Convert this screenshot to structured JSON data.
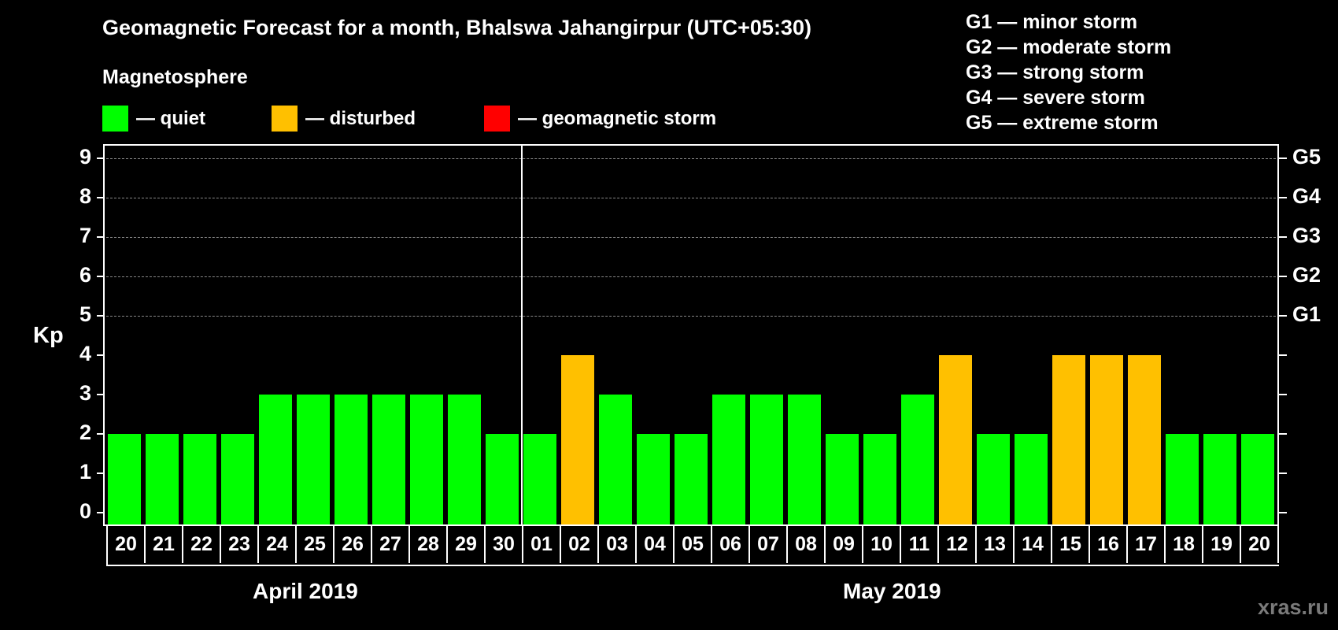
{
  "title": "Geomagnetic Forecast for a month, Bhalswa Jahangirpur (UTC+05:30)",
  "subtitle": "Magnetosphere",
  "legend": [
    {
      "label": "— quiet",
      "color": "#00ff00"
    },
    {
      "label": "— disturbed",
      "color": "#ffc000"
    },
    {
      "label": "— geomagnetic storm",
      "color": "#ff0000"
    }
  ],
  "g_scale_legend": [
    "G1 — minor storm",
    "G2 — moderate storm",
    "G3 — strong storm",
    "G4 — severe storm",
    "G5 — extreme storm"
  ],
  "y_axis_label": "Kp",
  "y_ticks": [
    "0",
    "1",
    "2",
    "3",
    "4",
    "5",
    "6",
    "7",
    "8",
    "9"
  ],
  "right_ticks": {
    "5": "G1",
    "6": "G2",
    "7": "G3",
    "8": "G4",
    "9": "G5"
  },
  "months": [
    {
      "label": "April 2019"
    },
    {
      "label": "May 2019"
    }
  ],
  "watermark": "xras.ru",
  "colors": {
    "quiet": "#00ff00",
    "disturbed": "#ffc000",
    "storm": "#ff0000",
    "background": "#000000",
    "grid": "#888888"
  },
  "chart_data": {
    "type": "bar",
    "title": "Geomagnetic Forecast for a month, Bhalswa Jahangirpur (UTC+05:30)",
    "xlabel": "",
    "ylabel": "Kp",
    "ylim": [
      0,
      9
    ],
    "grid": "dashed horizontal at Kp 5-9",
    "legend_position": "top",
    "categories": [
      "20",
      "21",
      "22",
      "23",
      "24",
      "25",
      "26",
      "27",
      "28",
      "29",
      "30",
      "01",
      "02",
      "03",
      "04",
      "05",
      "06",
      "07",
      "08",
      "09",
      "10",
      "11",
      "12",
      "13",
      "14",
      "15",
      "16",
      "17",
      "18",
      "19",
      "20"
    ],
    "months": [
      "April 2019",
      "April 2019",
      "April 2019",
      "April 2019",
      "April 2019",
      "April 2019",
      "April 2019",
      "April 2019",
      "April 2019",
      "April 2019",
      "April 2019",
      "May 2019",
      "May 2019",
      "May 2019",
      "May 2019",
      "May 2019",
      "May 2019",
      "May 2019",
      "May 2019",
      "May 2019",
      "May 2019",
      "May 2019",
      "May 2019",
      "May 2019",
      "May 2019",
      "May 2019",
      "May 2019",
      "May 2019",
      "May 2019",
      "May 2019",
      "May 2019"
    ],
    "values": [
      2,
      2,
      2,
      2,
      3,
      3,
      3,
      3,
      3,
      3,
      2,
      2,
      4,
      3,
      2,
      2,
      3,
      3,
      3,
      2,
      2,
      3,
      4,
      2,
      2,
      4,
      4,
      4,
      2,
      2,
      2
    ],
    "status": [
      "quiet",
      "quiet",
      "quiet",
      "quiet",
      "quiet",
      "quiet",
      "quiet",
      "quiet",
      "quiet",
      "quiet",
      "quiet",
      "quiet",
      "disturbed",
      "quiet",
      "quiet",
      "quiet",
      "quiet",
      "quiet",
      "quiet",
      "quiet",
      "quiet",
      "quiet",
      "disturbed",
      "quiet",
      "quiet",
      "disturbed",
      "disturbed",
      "disturbed",
      "quiet",
      "quiet",
      "quiet"
    ],
    "right_axis": {
      "5": "G1",
      "6": "G2",
      "7": "G3",
      "8": "G4",
      "9": "G5"
    }
  }
}
